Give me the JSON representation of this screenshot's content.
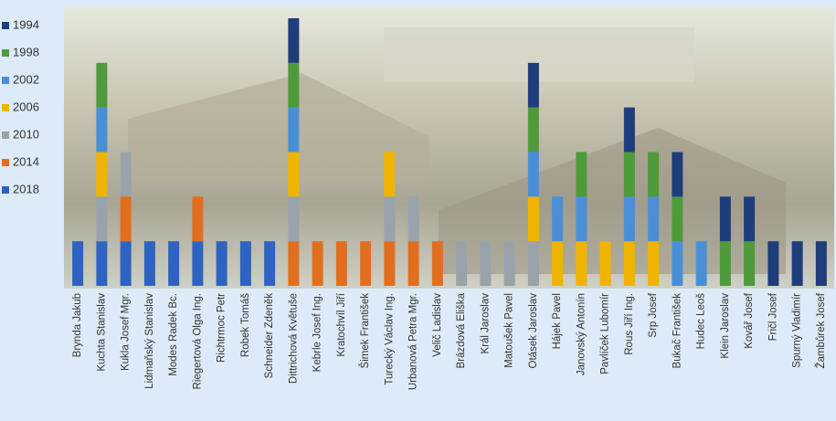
{
  "chart_data": {
    "type": "stacked_bar",
    "categories": [
      "Brynda Jakub",
      "Kuchta Stanislav",
      "Kukla Josef Mgr.",
      "Lidmaňský Stanislav",
      "Modes Radek Bc.",
      "Riegertová Olga Ing.",
      "Richtrmoc Petr",
      "Robek Tomáš",
      "Schneider Zdeněk",
      "Dittrichová Květuše",
      "Kebrle Josef Ing.",
      "Kratochvíl Jiří",
      "Šimek František",
      "Turecký Václav Ing.",
      "Urbanová Petra Mgr.",
      "Velič Ladislav",
      "Brázdová Eliška",
      "Král Jaroslav",
      "Matoušek Pavel",
      "Otásek Jaroslav",
      "Hájek Pavel",
      "Janovský Antonín",
      "Pavlíček Lubomír",
      "Rous Jiří Ing.",
      "Srp Josef",
      "Bukač František",
      "Hudec Leoš",
      "Klein Jaroslav",
      "Kovář Josef",
      "Fričl Josef",
      "Spurný Vladimír",
      "Žambůrek Josef"
    ],
    "series": [
      {
        "name": "1994",
        "color": "#1f3d7a",
        "values": [
          0,
          0,
          0,
          0,
          0,
          0,
          0,
          0,
          0,
          1,
          0,
          0,
          0,
          0,
          0,
          0,
          0,
          0,
          0,
          1,
          0,
          0,
          0,
          1,
          0,
          1,
          0,
          1,
          1,
          1,
          1,
          1
        ]
      },
      {
        "name": "1998",
        "color": "#4e9a3c",
        "values": [
          0,
          1,
          0,
          0,
          0,
          0,
          0,
          0,
          0,
          1,
          0,
          0,
          0,
          0,
          0,
          0,
          0,
          0,
          0,
          1,
          0,
          1,
          0,
          1,
          1,
          1,
          0,
          1,
          1,
          0,
          0,
          0
        ]
      },
      {
        "name": "2002",
        "color": "#4a8fd6",
        "values": [
          0,
          1,
          0,
          0,
          0,
          0,
          0,
          0,
          0,
          1,
          0,
          0,
          0,
          0,
          0,
          0,
          0,
          0,
          0,
          1,
          1,
          1,
          0,
          1,
          1,
          1,
          1,
          0,
          0,
          0,
          0,
          0
        ]
      },
      {
        "name": "2006",
        "color": "#f0b400",
        "values": [
          0,
          1,
          0,
          0,
          0,
          0,
          0,
          0,
          0,
          1,
          0,
          0,
          0,
          1,
          0,
          0,
          0,
          0,
          0,
          1,
          1,
          1,
          1,
          1,
          1,
          0,
          0,
          0,
          0,
          0,
          0,
          0
        ]
      },
      {
        "name": "2010",
        "color": "#9aa2aa",
        "values": [
          0,
          1,
          1,
          0,
          0,
          0,
          0,
          0,
          0,
          1,
          0,
          0,
          0,
          1,
          1,
          0,
          1,
          1,
          1,
          1,
          0,
          0,
          0,
          0,
          0,
          0,
          0,
          0,
          0,
          0,
          0,
          0
        ]
      },
      {
        "name": "2014",
        "color": "#e06f1f",
        "values": [
          0,
          0,
          1,
          0,
          0,
          1,
          0,
          0,
          0,
          1,
          1,
          1,
          1,
          1,
          1,
          1,
          0,
          0,
          0,
          0,
          0,
          0,
          0,
          0,
          0,
          0,
          0,
          0,
          0,
          0,
          0,
          0
        ]
      },
      {
        "name": "2018",
        "color": "#2f63c2",
        "values": [
          1,
          1,
          1,
          1,
          1,
          1,
          1,
          1,
          1,
          0,
          0,
          0,
          0,
          0,
          0,
          0,
          0,
          0,
          0,
          0,
          0,
          0,
          0,
          0,
          0,
          0,
          0,
          0,
          0,
          0,
          0,
          0
        ]
      }
    ],
    "ylim": [
      0,
      6
    ]
  }
}
